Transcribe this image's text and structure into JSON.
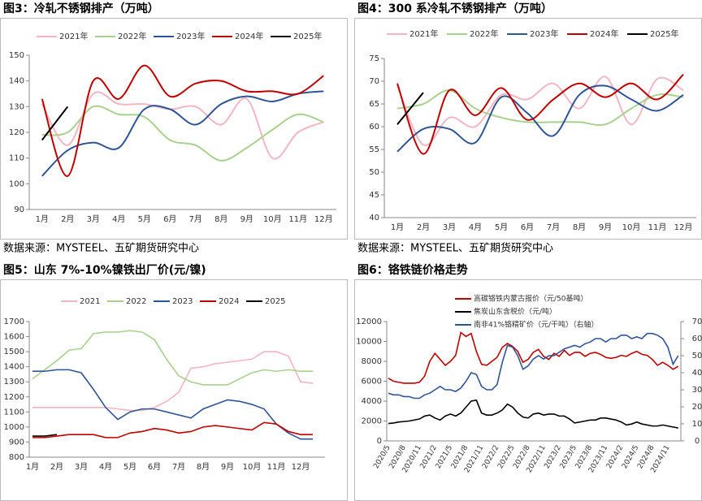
{
  "chart_data": [
    {
      "type": "line",
      "title": "图3：冷轧不锈钢排产（万吨）",
      "source": "数据来源：MYSTEEL、五矿期货研究中心",
      "categories": [
        "1月",
        "2月",
        "3月",
        "4月",
        "5月",
        "6月",
        "7月",
        "8月",
        "9月",
        "10月",
        "11月",
        "12月"
      ],
      "ylim": [
        90,
        150
      ],
      "yticks": [
        90,
        100,
        110,
        120,
        130,
        140,
        150
      ],
      "smooth": true,
      "series": [
        {
          "name": "2021年",
          "color": "#f4b6c2",
          "values": [
            131,
            115,
            135,
            131,
            131,
            129,
            130,
            123,
            133,
            110,
            120,
            124
          ]
        },
        {
          "name": "2022年",
          "color": "#a9d18e",
          "values": [
            119,
            120,
            130,
            127,
            126,
            117,
            115,
            109,
            114,
            121,
            127,
            124
          ]
        },
        {
          "name": "2023年",
          "color": "#2f5597",
          "values": [
            103,
            113,
            116,
            114,
            129,
            129,
            123,
            131,
            134,
            132,
            135,
            136
          ]
        },
        {
          "name": "2024年",
          "color": "#c00000",
          "values": [
            133,
            103,
            140,
            133,
            146,
            134,
            139,
            140,
            136,
            136,
            135,
            142
          ]
        },
        {
          "name": "2025年",
          "color": "#000000",
          "values": [
            117,
            130,
            null,
            null,
            null,
            null,
            null,
            null,
            null,
            null,
            null,
            null
          ]
        }
      ]
    },
    {
      "type": "line",
      "title": "图4：300 系冷轧不锈钢排产（万吨）",
      "source": "数据来源：MYSTEEL、五矿期货研究中心",
      "categories": [
        "1月",
        "2月",
        "3月",
        "4月",
        "5月",
        "6月",
        "7月",
        "8月",
        "9月",
        "10月",
        "11月",
        "12月"
      ],
      "ylim": [
        40,
        75
      ],
      "yticks": [
        40,
        45,
        50,
        55,
        60,
        65,
        70,
        75
      ],
      "smooth": true,
      "series": [
        {
          "name": "2021年",
          "color": "#f4b6c2",
          "values": [
            69,
            56,
            62,
            60,
            67,
            66,
            69.5,
            64,
            71,
            60.5,
            70.5,
            68
          ]
        },
        {
          "name": "2022年",
          "color": "#a9d18e",
          "values": [
            64,
            65,
            68,
            64,
            62,
            61,
            61,
            61,
            60.5,
            64,
            67,
            66.5
          ]
        },
        {
          "name": "2023年",
          "color": "#2f5597",
          "values": [
            54.5,
            59.5,
            59.5,
            56.5,
            66.5,
            63,
            58,
            67,
            69,
            66,
            63.5,
            67
          ]
        },
        {
          "name": "2024年",
          "color": "#c00000",
          "values": [
            69.5,
            54,
            68,
            62.5,
            68.5,
            61.5,
            66,
            69.5,
            66.5,
            69.5,
            66,
            71.5
          ]
        },
        {
          "name": "2025年",
          "color": "#000000",
          "values": [
            60.5,
            67.5,
            null,
            null,
            null,
            null,
            null,
            null,
            null,
            null,
            null,
            null
          ]
        }
      ]
    },
    {
      "type": "line",
      "title": "图5：山东 7%-10%镍铁出厂价(元/镍)",
      "source": "数据来源：MYSTEEL、五矿期货研究中心",
      "categories": [
        "1月",
        null,
        "2月",
        null,
        "3月",
        null,
        "4月",
        null,
        "5月",
        null,
        "6月",
        null,
        "7月",
        null,
        "8月",
        null,
        "9月",
        null,
        "10月",
        null,
        "11月",
        null,
        "12月",
        null
      ],
      "ylim": [
        800,
        1700
      ],
      "yticks": [
        800,
        900,
        1000,
        1100,
        1200,
        1300,
        1400,
        1500,
        1600,
        1700
      ],
      "smooth": false,
      "series": [
        {
          "name": "2021",
          "color": "#f4b6c2",
          "values": [
            1130,
            1130,
            1130,
            1130,
            1130,
            1130,
            1130,
            1120,
            1110,
            1110,
            1130,
            1170,
            1230,
            1390,
            1400,
            1420,
            1430,
            1440,
            1450,
            1500,
            1500,
            1470,
            1300,
            1290
          ]
        },
        {
          "name": "2022",
          "color": "#a9d18e",
          "values": [
            1320,
            1380,
            1440,
            1510,
            1520,
            1620,
            1630,
            1630,
            1640,
            1630,
            1580,
            1450,
            1340,
            1300,
            1280,
            1280,
            1280,
            1320,
            1360,
            1380,
            1370,
            1380,
            1370,
            1370
          ]
        },
        {
          "name": "2023",
          "color": "#2f5597",
          "values": [
            1370,
            1370,
            1380,
            1380,
            1360,
            1250,
            1130,
            1050,
            1100,
            1120,
            1120,
            1100,
            1080,
            1060,
            1120,
            1150,
            1180,
            1170,
            1150,
            1120,
            1020,
            960,
            920,
            920
          ]
        },
        {
          "name": "2024",
          "color": "#c00000",
          "values": [
            930,
            930,
            940,
            950,
            950,
            950,
            930,
            930,
            960,
            970,
            990,
            980,
            960,
            970,
            1000,
            1010,
            1000,
            990,
            980,
            1030,
            1020,
            970,
            950,
            950
          ]
        },
        {
          "name": "2025",
          "color": "#000000",
          "values": [
            940,
            940,
            950,
            null,
            null,
            null,
            null,
            null,
            null,
            null,
            null,
            null,
            null,
            null,
            null,
            null,
            null,
            null,
            null,
            null,
            null,
            null,
            null,
            null
          ]
        }
      ]
    },
    {
      "type": "line",
      "title": "图6：铬铁链价格走势",
      "source": "数据来源：MYSTEEL、五矿期货研究中心",
      "categories": [
        "2020/5",
        null,
        null,
        "2020/8",
        null,
        null,
        "2020/11",
        null,
        null,
        "2021/2",
        null,
        null,
        "2021/5",
        null,
        null,
        "2021/8",
        null,
        null,
        "2021/11",
        null,
        null,
        "2022/2",
        null,
        null,
        "2022/5",
        null,
        null,
        "2022/8",
        null,
        null,
        "2022/11",
        null,
        null,
        "2023/2",
        null,
        null,
        "2023/5",
        null,
        null,
        "2023/8",
        null,
        null,
        "2023/11",
        null,
        null,
        "2024/2",
        null,
        null,
        "2024/5",
        null,
        null,
        "2024/8",
        null,
        null,
        "2024/11",
        null,
        null
      ],
      "ylim": [
        0,
        12000
      ],
      "yticks": [
        0,
        2000,
        4000,
        6000,
        8000,
        10000,
        12000
      ],
      "y2lim": [
        0,
        70
      ],
      "y2ticks": [
        0,
        10,
        20,
        30,
        40,
        50,
        60,
        70
      ],
      "smooth": false,
      "series": [
        {
          "name": "高碳铬铁内蒙古报价（元/50基吨）",
          "color": "#c00000",
          "values": [
            6300,
            6000,
            5900,
            5800,
            5800,
            5800,
            5900,
            6500,
            8000,
            8800,
            8200,
            7600,
            8000,
            8600,
            10900,
            10500,
            10800,
            9000,
            7700,
            7600,
            8000,
            8400,
            9400,
            9800,
            9500,
            9000,
            7900,
            8200,
            8900,
            9200,
            8500,
            8200,
            8800,
            8500,
            9100,
            8600,
            8900,
            8900,
            8500,
            8800,
            8900,
            8700,
            8400,
            8300,
            8400,
            8600,
            8500,
            8800,
            9000,
            8700,
            8600,
            8200,
            7600,
            7900,
            7600,
            7200,
            7500
          ]
        },
        {
          "name": "焦炭山东含税价（元/吨）",
          "color": "#000000",
          "values": [
            1750,
            1800,
            1900,
            1950,
            2000,
            2100,
            2200,
            2500,
            2600,
            2300,
            2100,
            2500,
            2700,
            2500,
            2800,
            3400,
            4000,
            4100,
            2800,
            2600,
            2600,
            2800,
            3100,
            3700,
            3400,
            2800,
            2400,
            2300,
            2700,
            2800,
            2600,
            2700,
            2700,
            2500,
            2500,
            2200,
            1800,
            1900,
            2000,
            2100,
            2100,
            2300,
            2300,
            2200,
            2100,
            1900,
            1600,
            1700,
            1900,
            1700,
            1600,
            1500,
            1500,
            1600,
            1500,
            1400,
            1300
          ]
        },
        {
          "name": "南非41%铬精矿价（元/干吨）（右轴）",
          "color": "#2f5597",
          "axis": "y2",
          "values": [
            28,
            27,
            27,
            26,
            26,
            25,
            25,
            27,
            28,
            30,
            32,
            30,
            30,
            29,
            31,
            35,
            40,
            39,
            32,
            30,
            30,
            33,
            46,
            56,
            55,
            50,
            42,
            44,
            48,
            50,
            48,
            50,
            50,
            52,
            54,
            55,
            56,
            55,
            57,
            58,
            60,
            60,
            58,
            60,
            60,
            62,
            62,
            60,
            61,
            60,
            63,
            63,
            62,
            60,
            55,
            45,
            50
          ]
        }
      ]
    }
  ]
}
